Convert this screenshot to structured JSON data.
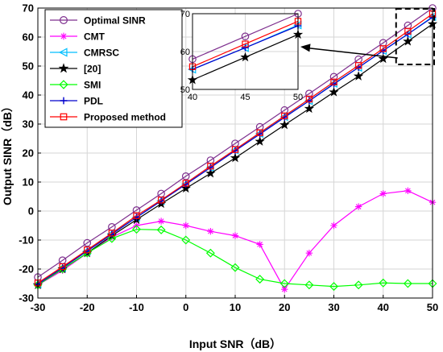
{
  "chart_data": {
    "type": "line",
    "xlabel": "Input SNR（dB）",
    "ylabel": "Output SINR（dB）",
    "xlim": [
      -30,
      50
    ],
    "ylim": [
      -30,
      70
    ],
    "xticks": [
      -30,
      -20,
      -10,
      0,
      10,
      20,
      30,
      40,
      50
    ],
    "yticks": [
      -30,
      -20,
      -10,
      0,
      10,
      20,
      30,
      40,
      50,
      60,
      70
    ],
    "grid": true,
    "legend_position": "top-left",
    "x": [
      -30,
      -25,
      -20,
      -15,
      -10,
      -5,
      0,
      5,
      10,
      15,
      20,
      25,
      30,
      35,
      40,
      45,
      50
    ],
    "series": [
      {
        "name": "Optimal SINR",
        "color": "#7E2F8E",
        "marker": "circle",
        "values": [
          -22.8,
          -17,
          -11,
          -5.5,
          0.3,
          6,
          12,
          17.5,
          23.3,
          29,
          34.8,
          40.5,
          46.3,
          52.3,
          58,
          64,
          70
        ]
      },
      {
        "name": "CMT",
        "color": "#FF00FF",
        "marker": "asterisk",
        "values": [
          -25.5,
          -20.5,
          -14.5,
          -9,
          -5,
          -3.5,
          -5,
          -7,
          -8.5,
          -11.5,
          -27,
          -14.5,
          -5,
          1.5,
          6,
          7,
          3
        ]
      },
      {
        "name": "CMRSC",
        "color": "#00BFFF",
        "marker": "triangle-left",
        "values": [
          -25.2,
          -19.6,
          -13.8,
          -7.8,
          -2.2,
          3.5,
          9.3,
          15,
          21,
          26.7,
          32.5,
          38,
          44,
          49.5,
          55.3,
          61,
          67
        ]
      },
      {
        "name": "[20]",
        "color": "#000000",
        "marker": "star",
        "values": [
          -25.5,
          -20,
          -14.5,
          -8.5,
          -3,
          2.5,
          7.8,
          13,
          18.3,
          24,
          29.7,
          35.3,
          41,
          46.5,
          52.5,
          58.5,
          64.5
        ]
      },
      {
        "name": "SMI",
        "color": "#00FF00",
        "marker": "diamond",
        "values": [
          -25.5,
          -20,
          -14.5,
          -9.5,
          -6.3,
          -6.5,
          -10,
          -14.5,
          -19.5,
          -23.5,
          -25,
          -25.5,
          -26,
          -25.5,
          -24.8,
          -25,
          -25
        ]
      },
      {
        "name": "PDL",
        "color": "#0000CC",
        "marker": "plus",
        "values": [
          -25.2,
          -19.6,
          -13.8,
          -8,
          -2.2,
          3.5,
          9.2,
          15,
          20.8,
          26.5,
          32.3,
          38,
          43.8,
          49.5,
          55.3,
          61,
          66.8
        ]
      },
      {
        "name": "Proposed method",
        "color": "#FF0000",
        "marker": "square",
        "values": [
          -24.8,
          -19.2,
          -13.4,
          -7.6,
          -1.6,
          3.8,
          9.6,
          15.5,
          21.2,
          27,
          32.8,
          38.6,
          44.5,
          50.2,
          56,
          62,
          68
        ]
      }
    ],
    "inset": {
      "xlim": [
        40,
        50
      ],
      "ylim": [
        50,
        70
      ],
      "xticks": [
        40,
        45,
        50
      ],
      "yticks": [
        50,
        60,
        70
      ]
    }
  }
}
